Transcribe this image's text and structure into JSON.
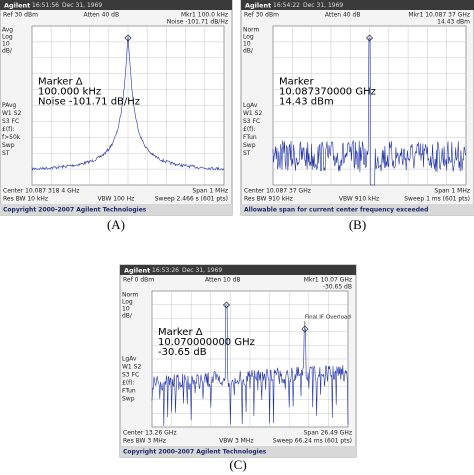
{
  "panels": [
    {
      "brand": "Agilent",
      "time": "16:51:56",
      "date": "Dec 31, 1969",
      "ref": "Ref 30 dBm",
      "atten": "Atten 40 dB",
      "mkr": "Mkr1  100.0 kHz",
      "mkr_value": "Noise  -101.71 dB/Hz",
      "side": [
        "Avg",
        "Log",
        "10",
        "dB/",
        "PAvg",
        "W1 S2",
        "S3 FC",
        "£(f):",
        "f>50k",
        "Swp",
        "ST"
      ],
      "marker_box": [
        "Marker Δ",
        "100.000 kHz",
        "Noise  -101.71 dB/Hz"
      ],
      "bottom": [
        "Center 10.087 318 4 GHz",
        "Span 1 MHz"
      ],
      "bottom2": [
        "Res BW 10 kHz",
        "VBW 100 Hz",
        "Sweep 2.466 s (601 pts)"
      ],
      "footer": "Copyright 2000-2007 Agilent Technologies",
      "caption": "(A)"
    },
    {
      "brand": "Agilent",
      "time": "16:54:22",
      "date": "Dec 31, 1969",
      "ref": "Ref 30 dBm",
      "atten": "Atten 40 dB",
      "mkr": "Mkr1  10.087 37 GHz",
      "mkr_value": "14.43 dBm",
      "side": [
        "Norm",
        "Log",
        "10",
        "dB/",
        "LgAv",
        "W1 S2",
        "S3 FC",
        "£(f):",
        "FTun",
        "Swp",
        "ST"
      ],
      "marker_box": [
        "Marker",
        "10.087370000 GHz",
        "14.43 dBm"
      ],
      "bottom": [
        "Center 10.087 37 GHz",
        "Span 1 MHz"
      ],
      "bottom2": [
        "Res BW 910 kHz",
        "VBW 910 kHz",
        "Sweep 1 ms (601 pts)"
      ],
      "footer": "Allowable span for current center frequency exceeded",
      "caption": "(B)"
    },
    {
      "brand": "Agilent",
      "time": "16:53:26",
      "date": "Dec 31, 1969",
      "ref": "Ref 0 dBm",
      "atten": "Atten 10 dB",
      "mkr": "Mkr1  10.07 GHz",
      "mkr_value": "-30.65 dB",
      "side": [
        "Norm",
        "Log",
        "10",
        "dB/",
        "LgAv",
        "W1 S2",
        "S3 FC",
        "£(f):",
        "FTun",
        "Swp"
      ],
      "annotation": "Final IF Overload",
      "marker_box": [
        "Marker Δ",
        "10.070000000 GHz",
        "-30.65 dB"
      ],
      "bottom": [
        "Center 13.26 GHz",
        "Span 26.49 GHz"
      ],
      "bottom2": [
        "Res BW 3 MHz",
        "VBW 3 MHz",
        "Sweep 66.24 ms (601 pts)"
      ],
      "footer": "Copyright 2000-2007 Agilent Technologies",
      "caption": "(C)"
    }
  ]
}
